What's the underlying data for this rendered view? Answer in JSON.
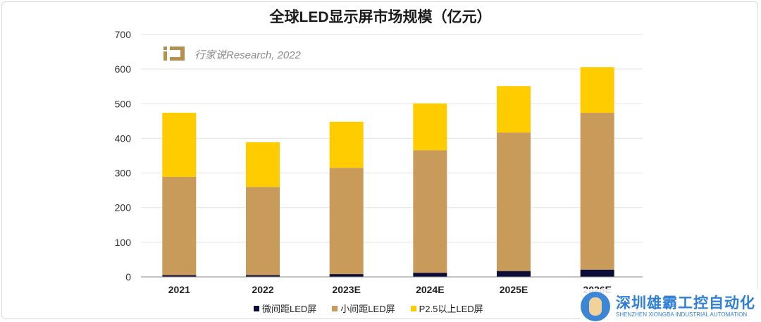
{
  "chart_data": {
    "type": "bar",
    "stacked": true,
    "title": "全球LED显示屏市场规模（亿元）",
    "categories": [
      "2021",
      "2022",
      "2023E",
      "2024E",
      "2025E",
      "2026E"
    ],
    "series": [
      {
        "name": "微间距LED屏",
        "color": "#0d0d3a",
        "values": [
          5,
          5,
          8,
          12,
          17,
          21
        ]
      },
      {
        "name": "小间距LED屏",
        "color": "#c89b5a",
        "values": [
          284,
          255,
          307,
          354,
          400,
          453
        ]
      },
      {
        "name": "P2.5以上LED屏",
        "color": "#ffcc00",
        "values": [
          185,
          129,
          133,
          135,
          134,
          132
        ]
      }
    ],
    "ylim": [
      0,
      700
    ],
    "yticks": [
      "0",
      "100",
      "200",
      "300",
      "400",
      "500",
      "600",
      "700"
    ],
    "grid": true,
    "legend": "bottom"
  },
  "watermark": {
    "text": "行家说Research, 2022"
  },
  "brand_logo": {
    "cn": "深圳雄霸工控自动化",
    "en": "SHENZHEN XIONGBA INDUSTRIAL AUTOMATION"
  }
}
